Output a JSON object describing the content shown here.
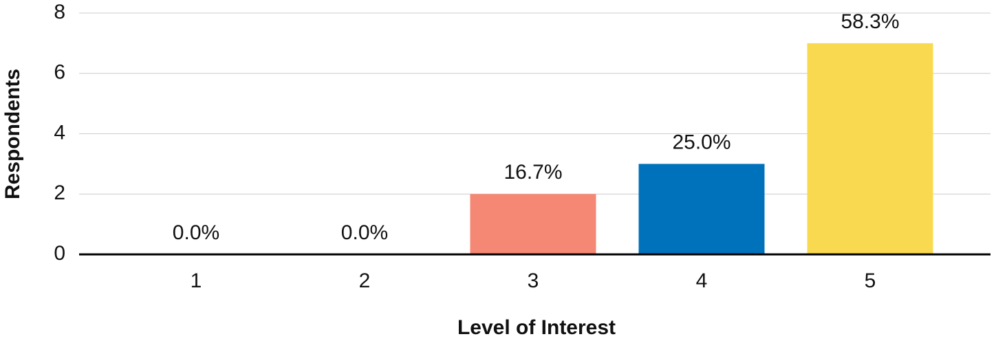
{
  "chart_data": {
    "type": "bar",
    "x_label": "Level of Interest",
    "y_label": "Respondents",
    "categories": [
      "1",
      "2",
      "3",
      "4",
      "5"
    ],
    "values": [
      0,
      0,
      2,
      3,
      7
    ],
    "percent_labels": [
      "0.0%",
      "0.0%",
      "16.7%",
      "25.0%",
      "58.3%"
    ],
    "colors": [
      null,
      null,
      "#f58874",
      "#0072bc",
      "#f9d94f"
    ],
    "ylim": [
      0,
      8
    ],
    "yticks": [
      0,
      2,
      4,
      6,
      8
    ],
    "grid": true
  }
}
